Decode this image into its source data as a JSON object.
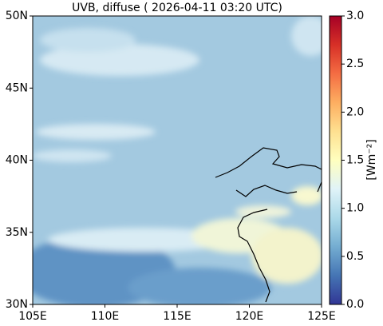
{
  "chart_data": {
    "type": "map",
    "title": "UVB, diffuse ( 2026-04-11 03:20 UTC)",
    "xlim": [
      105,
      125
    ],
    "xticks": [
      {
        "value": 105,
        "label": "105E"
      },
      {
        "value": 110,
        "label": "110E"
      },
      {
        "value": 115,
        "label": "115E"
      },
      {
        "value": 120,
        "label": "120E"
      },
      {
        "value": 125,
        "label": "125E"
      }
    ],
    "ylim": [
      30,
      50
    ],
    "yticks": [
      {
        "value": 30,
        "label": "30N"
      },
      {
        "value": 35,
        "label": "35N"
      },
      {
        "value": 40,
        "label": "40N"
      },
      {
        "value": 45,
        "label": "45N"
      },
      {
        "value": 50,
        "label": "50N"
      }
    ],
    "colorbar_label": "[Wm⁻²]",
    "clim": [
      0,
      3
    ],
    "colorbar_ticks": [
      {
        "value": 0,
        "label": "0.0"
      },
      {
        "value": 0.5,
        "label": "0.5"
      },
      {
        "value": 1,
        "label": "1.0"
      },
      {
        "value": 1.5,
        "label": "1.5"
      },
      {
        "value": 2,
        "label": "2.0"
      },
      {
        "value": 2.5,
        "label": "2.5"
      },
      {
        "value": 3,
        "label": "3.0"
      }
    ]
  }
}
